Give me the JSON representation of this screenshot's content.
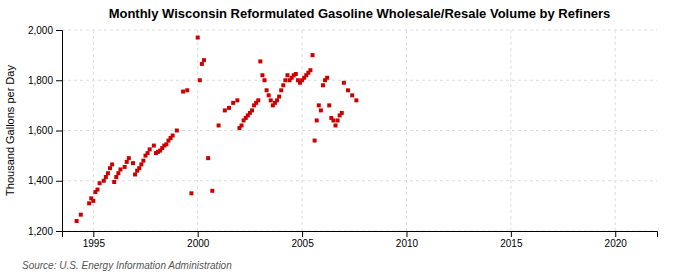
{
  "chart_data": {
    "type": "scatter",
    "title": "Monthly Wisconsin Reformulated Gasoline Wholesale/Resale Volume by Refiners",
    "ylabel": "Thousand Gallons per Day",
    "annotation": "Source: U.S. Energy Information Administration",
    "xlim": [
      1993.5,
      2022
    ],
    "ylim": [
      1200,
      2000
    ],
    "xticks": [
      1995,
      2000,
      2005,
      2010,
      2015,
      2020
    ],
    "yticks": [
      {
        "value": 1200,
        "label": "1,200"
      },
      {
        "value": 1400,
        "label": "1,400"
      },
      {
        "value": 1600,
        "label": "1,600"
      },
      {
        "value": 1800,
        "label": "1,800"
      },
      {
        "value": 2000,
        "label": "2,000"
      }
    ],
    "grid": true,
    "color": "#CC0000",
    "marker": "square",
    "x": [
      1994.2,
      1994.4,
      1994.8,
      1994.9,
      1995.0,
      1995.1,
      1995.2,
      1995.3,
      1995.5,
      1995.6,
      1995.7,
      1995.8,
      1995.9,
      1996.0,
      1996.1,
      1996.2,
      1996.3,
      1996.5,
      1996.6,
      1996.7,
      1996.9,
      1997.0,
      1997.1,
      1997.2,
      1997.3,
      1997.4,
      1997.5,
      1997.6,
      1997.7,
      1997.9,
      1998.0,
      1998.1,
      1998.2,
      1998.3,
      1998.4,
      1998.5,
      1998.6,
      1998.7,
      1998.8,
      1999.0,
      1999.3,
      1999.5,
      1999.7,
      2000.0,
      2000.1,
      2000.2,
      2000.3,
      2000.5,
      2000.7,
      2001.0,
      2001.3,
      2001.5,
      2001.7,
      2001.9,
      2002.0,
      2002.1,
      2002.2,
      2002.3,
      2002.4,
      2002.5,
      2002.6,
      2002.7,
      2002.8,
      2002.9,
      2003.0,
      2003.1,
      2003.2,
      2003.3,
      2003.4,
      2003.5,
      2003.6,
      2003.7,
      2003.8,
      2003.9,
      2004.0,
      2004.1,
      2004.2,
      2004.3,
      2004.4,
      2004.5,
      2004.6,
      2004.7,
      2004.8,
      2004.9,
      2005.0,
      2005.1,
      2005.2,
      2005.3,
      2005.4,
      2005.5,
      2005.6,
      2005.7,
      2005.8,
      2005.9,
      2006.0,
      2006.1,
      2006.2,
      2006.3,
      2006.4,
      2006.5,
      2006.6,
      2006.7,
      2006.8,
      2006.9,
      2007.0,
      2007.2,
      2007.4,
      2007.6
    ],
    "values": [
      1240,
      1265,
      1310,
      1330,
      1320,
      1355,
      1365,
      1390,
      1400,
      1415,
      1430,
      1450,
      1465,
      1395,
      1415,
      1430,
      1445,
      1455,
      1475,
      1490,
      1470,
      1425,
      1440,
      1450,
      1465,
      1480,
      1500,
      1510,
      1525,
      1540,
      1510,
      1515,
      1520,
      1530,
      1540,
      1545,
      1560,
      1570,
      1580,
      1600,
      1755,
      1760,
      1350,
      1970,
      1800,
      1865,
      1880,
      1490,
      1360,
      1620,
      1680,
      1690,
      1710,
      1720,
      1610,
      1620,
      1640,
      1650,
      1660,
      1670,
      1680,
      1700,
      1710,
      1720,
      1875,
      1820,
      1800,
      1760,
      1740,
      1720,
      1700,
      1710,
      1720,
      1735,
      1760,
      1780,
      1800,
      1820,
      1800,
      1810,
      1820,
      1825,
      1800,
      1790,
      1800,
      1810,
      1820,
      1830,
      1840,
      1900,
      1560,
      1640,
      1700,
      1680,
      1780,
      1800,
      1810,
      1700,
      1650,
      1640,
      1620,
      1640,
      1660,
      1670,
      1790,
      1760,
      1740,
      1720
    ]
  }
}
